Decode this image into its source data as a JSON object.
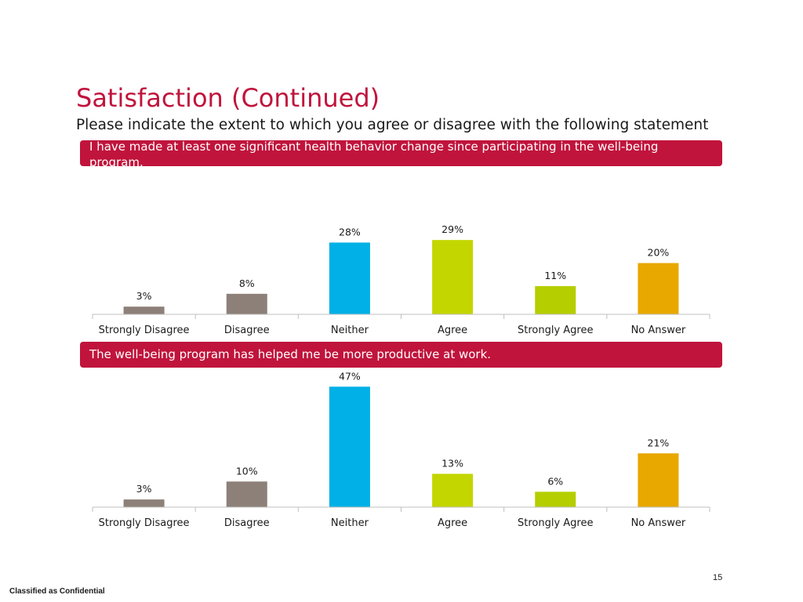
{
  "title": "Satisfaction (Continued)",
  "subtitle": "Please indicate the extent to which you agree or disagree with the following statement",
  "colors": {
    "accent": "#c0143c",
    "strongly_disagree": "#8c8078",
    "disagree": "#8c8078",
    "neither": "#00b0e6",
    "agree": "#c3d600",
    "strongly_agree": "#b5ce00",
    "no_answer": "#e8a800"
  },
  "chart_data": [
    {
      "type": "bar",
      "title": "I have made at least one significant health behavior change since participating in the well-being program.",
      "categories": [
        "Strongly Disagree",
        "Disagree",
        "Neither",
        "Agree",
        "Strongly Agree",
        "No Answer"
      ],
      "values": [
        3,
        8,
        28,
        29,
        11,
        20
      ],
      "data_labels": [
        "3%",
        "8%",
        "28%",
        "29%",
        "11%",
        "20%"
      ],
      "bar_colors": [
        "#8c8078",
        "#8c8078",
        "#00b0e6",
        "#c3d600",
        "#b5ce00",
        "#e8a800"
      ],
      "ylim": [
        0,
        30
      ],
      "grid": false,
      "legend": false
    },
    {
      "type": "bar",
      "title": "The well-being program has helped me be more productive at work.",
      "categories": [
        "Strongly Disagree",
        "Disagree",
        "Neither",
        "Agree",
        "Strongly Agree",
        "No Answer"
      ],
      "values": [
        3,
        10,
        47,
        13,
        6,
        21
      ],
      "data_labels": [
        "3%",
        "10%",
        "47%",
        "13%",
        "6%",
        "21%"
      ],
      "bar_colors": [
        "#8c8078",
        "#8c8078",
        "#00b0e6",
        "#c3d600",
        "#b5ce00",
        "#e8a800"
      ],
      "ylim": [
        0,
        50
      ],
      "grid": false,
      "legend": false
    }
  ],
  "page_number": "15",
  "footer": "Classified as Confidential"
}
